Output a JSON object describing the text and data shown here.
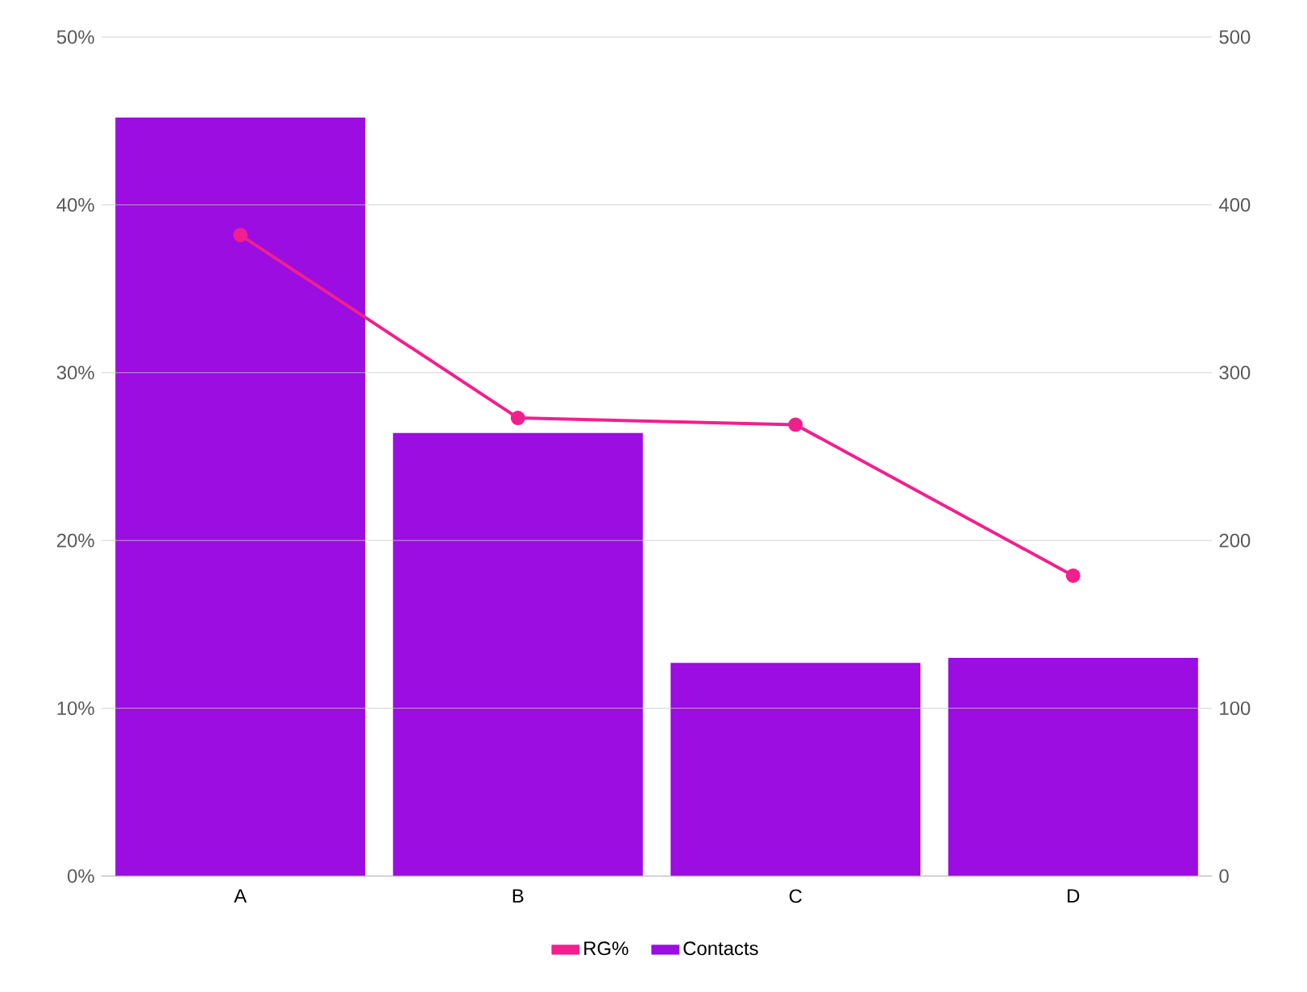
{
  "chart_data": {
    "type": "bar",
    "categories": [
      "A",
      "B",
      "C",
      "D"
    ],
    "series": [
      {
        "name": "RG%",
        "type": "line",
        "color": "#f0208f",
        "values": [
          38.2,
          27.3,
          26.9,
          17.9
        ]
      },
      {
        "name": "Contacts",
        "axis": "y2",
        "color": "#9b0de0",
        "values": [
          452,
          264,
          127,
          130
        ]
      }
    ],
    "ylim": [
      0,
      50
    ],
    "yticks": [
      {
        "value": 0,
        "label": "0%"
      },
      {
        "value": 10,
        "label": "10%"
      },
      {
        "value": 20,
        "label": "20%"
      },
      {
        "value": 30,
        "label": "30%"
      },
      {
        "value": 40,
        "label": "40%"
      },
      {
        "value": 50,
        "label": "50%"
      }
    ],
    "y2lim": [
      0,
      500
    ],
    "y2ticks": [
      0,
      100,
      200,
      300,
      400,
      500
    ],
    "grid": "y",
    "legend": "bottom",
    "marker": "circle"
  }
}
